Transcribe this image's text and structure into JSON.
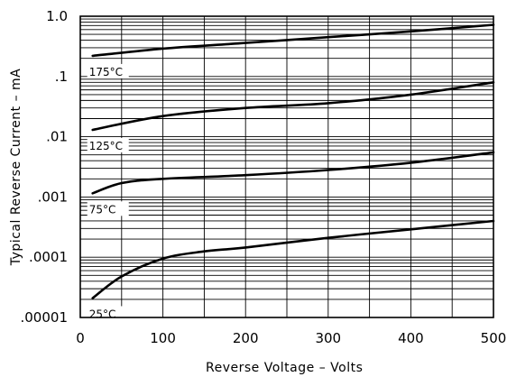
{
  "chart_data": {
    "type": "line",
    "title": "",
    "xlabel": "Reverse Voltage  –  Volts",
    "ylabel": "Typical Reverse Current  –  mA",
    "xlim": [
      0,
      500
    ],
    "ylim": [
      1e-05,
      1.0
    ],
    "y_scale": "log",
    "grid": true,
    "x_ticks": [
      0,
      100,
      200,
      300,
      400,
      500
    ],
    "x_tick_labels": [
      "0",
      "100",
      "200",
      "300",
      "400",
      "500"
    ],
    "y_ticks": [
      1e-05,
      0.0001,
      0.001,
      0.01,
      0.1,
      1.0
    ],
    "y_tick_labels": [
      ".00001",
      ".0001",
      ".001",
      ".01",
      ".1",
      "1.0"
    ],
    "series": [
      {
        "name": "175°C",
        "x": [
          15,
          100,
          200,
          300,
          400,
          500
        ],
        "y": [
          0.22,
          0.29,
          0.36,
          0.45,
          0.56,
          0.72
        ]
      },
      {
        "name": "125°C",
        "x": [
          15,
          100,
          200,
          300,
          400,
          500
        ],
        "y": [
          0.013,
          0.022,
          0.03,
          0.036,
          0.05,
          0.08
        ]
      },
      {
        "name": "75°C",
        "x": [
          15,
          50,
          100,
          200,
          300,
          400,
          500
        ],
        "y": [
          0.00115,
          0.0017,
          0.002,
          0.0023,
          0.0028,
          0.0037,
          0.0055
        ]
      },
      {
        "name": "25°C",
        "x": [
          15,
          50,
          100,
          150,
          200,
          300,
          400,
          500
        ],
        "y": [
          2.1e-05,
          4.8e-05,
          9.5e-05,
          0.000125,
          0.000145,
          0.00021,
          0.00029,
          0.0004
        ]
      }
    ]
  }
}
